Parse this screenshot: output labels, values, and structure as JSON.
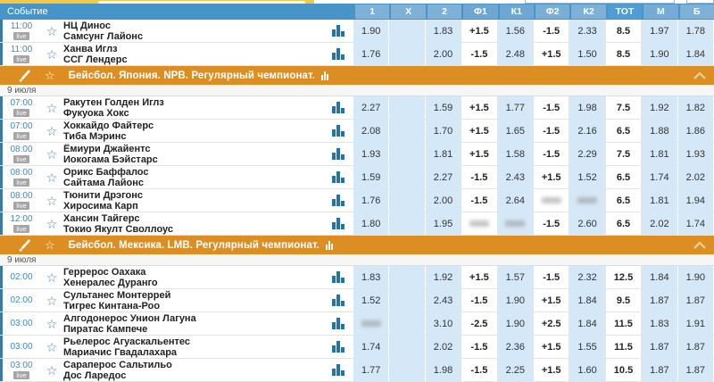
{
  "colors": {
    "accent_orange": "#dd8e22",
    "header_blue": "#4694c8",
    "header_cell_blue": "#7fb0d6",
    "odds_cell_blue": "#d5e8f7",
    "link_blue": "#3d8ac0",
    "live_badge_gray": "#a5a5a5",
    "top_toolbar_yellow": "#f5c843"
  },
  "header": {
    "event_column_label": "Событие",
    "odds_columns": [
      "1",
      "X",
      "2",
      "Ф1",
      "К1",
      "Ф2",
      "К2",
      "ТОТ",
      "М",
      "Б"
    ]
  },
  "live_badge_label": "live",
  "sections": [
    {
      "title": null,
      "date": null,
      "rows": [
        {
          "time": "11:00",
          "live": true,
          "home": "НЦ Динос",
          "away": "Самсунг Лайонс",
          "odds": [
            "1.90",
            "",
            "1.83",
            "+1.5",
            "1.56",
            "-1.5",
            "2.33",
            "8.5",
            "1.97",
            "1.78"
          ],
          "blurred": []
        },
        {
          "time": "11:00",
          "live": true,
          "home": "Ханва Иглз",
          "away": "ССГ Лендерс",
          "odds": [
            "1.76",
            "",
            "2.00",
            "-1.5",
            "2.48",
            "+1.5",
            "1.50",
            "8.5",
            "1.90",
            "1.84"
          ],
          "blurred": []
        }
      ]
    },
    {
      "title": "Бейсбол. Япония. NPB. Регулярный чемпионат.",
      "date": "9 июля",
      "rows": [
        {
          "time": "07:00",
          "live": true,
          "home": "Ракутен Голден Иглз",
          "away": "Фукуока Хокс",
          "odds": [
            "2.27",
            "",
            "1.59",
            "+1.5",
            "1.77",
            "-1.5",
            "1.98",
            "7.5",
            "1.92",
            "1.82"
          ],
          "blurred": []
        },
        {
          "time": "07:00",
          "live": true,
          "home": "Хоккайдо Файтерс",
          "away": "Тиба Мэринс",
          "odds": [
            "2.08",
            "",
            "1.70",
            "+1.5",
            "1.65",
            "-1.5",
            "2.16",
            "6.5",
            "1.88",
            "1.86"
          ],
          "blurred": []
        },
        {
          "time": "08:00",
          "live": true,
          "home": "Ёмиури Джайентс",
          "away": "Иокогама Бэйстарс",
          "odds": [
            "1.93",
            "",
            "1.81",
            "+1.5",
            "1.58",
            "-1.5",
            "2.29",
            "7.5",
            "1.81",
            "1.93"
          ],
          "blurred": []
        },
        {
          "time": "08:00",
          "live": true,
          "home": "Орикс Баффалос",
          "away": "Сайтама Лайонс",
          "odds": [
            "1.59",
            "",
            "2.27",
            "-1.5",
            "2.43",
            "+1.5",
            "1.52",
            "6.5",
            "1.74",
            "2.02"
          ],
          "blurred": []
        },
        {
          "time": "08:00",
          "live": true,
          "home": "Тюнити Дрэгонс",
          "away": "Хиросима Карп",
          "odds": [
            "1.76",
            "",
            "2.00",
            "-1.5",
            "2.64",
            "",
            "",
            "6.5",
            "1.81",
            "1.94"
          ],
          "blurred": [
            5,
            6
          ]
        },
        {
          "time": "12:00",
          "live": true,
          "home": "Хансин Тайгерс",
          "away": "Токио Якулт Своллоус",
          "odds": [
            "1.80",
            "",
            "1.95",
            "",
            "",
            "-1.5",
            "2.60",
            "6.5",
            "2.02",
            "1.74"
          ],
          "blurred": [
            3,
            4
          ]
        }
      ]
    },
    {
      "title": "Бейсбол. Мексика. LMB. Регулярный чемпионат.",
      "date": "9 июля",
      "rows": [
        {
          "time": "02:00",
          "live": false,
          "home": "Геррерос Оахака",
          "away": "Хенералес Дуранго",
          "odds": [
            "1.83",
            "",
            "1.92",
            "+1.5",
            "1.57",
            "-1.5",
            "2.32",
            "12.5",
            "1.84",
            "1.90"
          ],
          "blurred": []
        },
        {
          "time": "02:00",
          "live": false,
          "home": "Сультанес Монтеррей",
          "away": "Тигрес Кинтана-Роо",
          "odds": [
            "1.52",
            "",
            "2.43",
            "-1.5",
            "1.90",
            "+1.5",
            "1.84",
            "9.5",
            "1.87",
            "1.87"
          ],
          "blurred": []
        },
        {
          "time": "03:00",
          "live": false,
          "home": "Алгодонерос Унион Лагуна",
          "away": "Пиратас Кампече",
          "odds": [
            "",
            "",
            "3.10",
            "-2.5",
            "1.90",
            "+2.5",
            "1.84",
            "11.5",
            "1.83",
            "1.91"
          ],
          "blurred": [
            0
          ]
        },
        {
          "time": "03:00",
          "live": false,
          "home": "Рьелерос Агуаскальентес",
          "away": "Мариачис Гвадалахара",
          "odds": [
            "1.74",
            "",
            "2.02",
            "-1.5",
            "2.36",
            "+1.5",
            "1.55",
            "11.5",
            "1.87",
            "1.87"
          ],
          "blurred": []
        },
        {
          "time": "03:00",
          "live": true,
          "home": "Сараперос Сальтильо",
          "away": "Дос Ларедос",
          "odds": [
            "1.77",
            "",
            "1.98",
            "-1.5",
            "2.25",
            "+1.5",
            "1.60",
            "10.5",
            "1.87",
            "1.87"
          ],
          "blurred": []
        }
      ]
    }
  ]
}
